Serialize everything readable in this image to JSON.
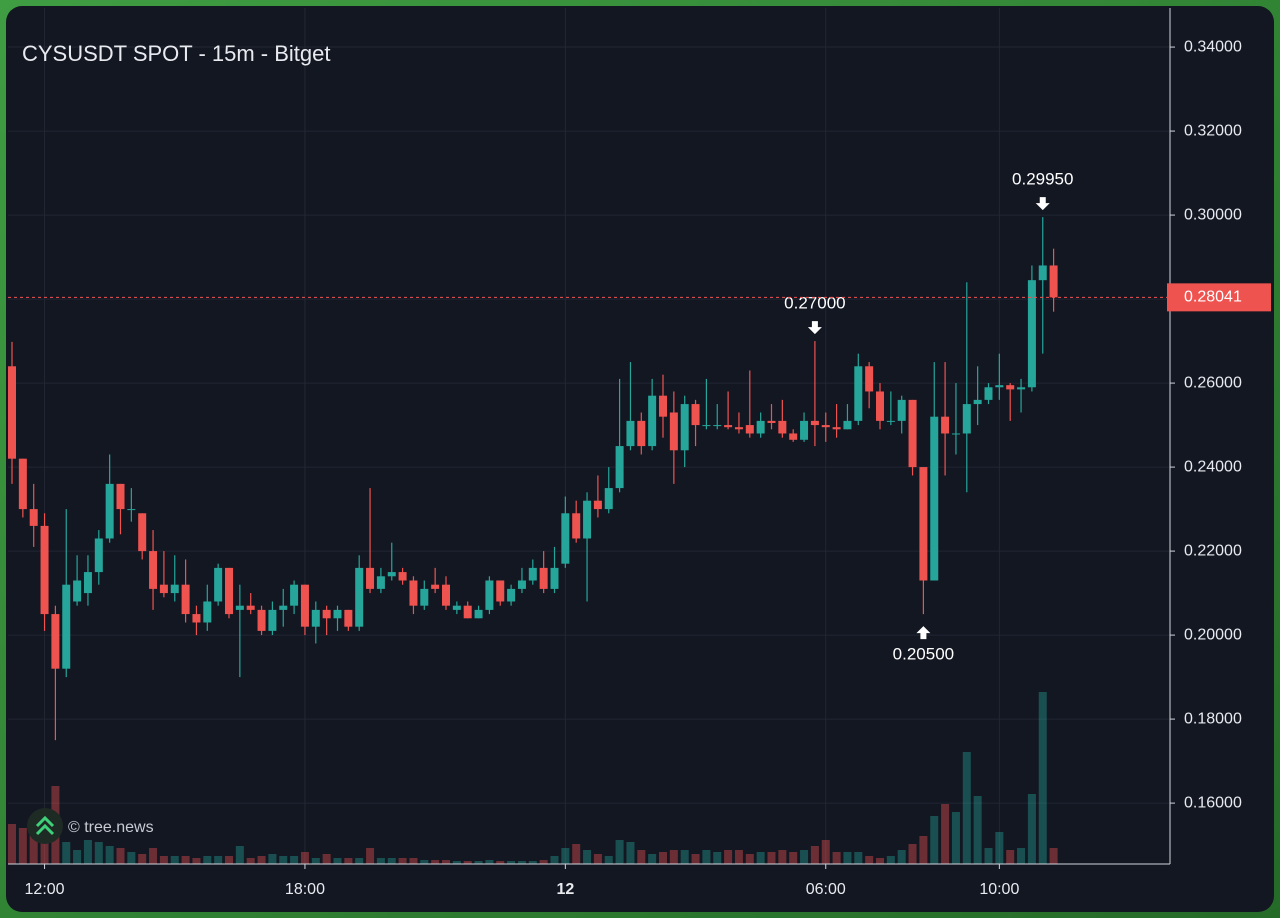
{
  "chart_data": {
    "type": "candlestick",
    "title": "CYSUSDT SPOT - 15m - Bitget",
    "watermark": "© tree.news",
    "categories": [
      null,
      null,
      null,
      "12:00",
      null,
      null,
      null,
      null,
      null,
      null,
      null,
      null,
      null,
      null,
      null,
      null,
      null,
      null,
      null,
      null,
      null,
      null,
      null,
      null,
      null,
      null,
      null,
      "18:00",
      null,
      null,
      null,
      null,
      null,
      null,
      null,
      null,
      null,
      null,
      null,
      null,
      null,
      null,
      null,
      null,
      null,
      null,
      null,
      null,
      null,
      null,
      null,
      "12",
      null,
      null,
      null,
      null,
      null,
      null,
      null,
      null,
      null,
      null,
      null,
      null,
      null,
      null,
      null,
      null,
      null,
      null,
      null,
      null,
      null,
      null,
      null,
      "06:00",
      null,
      null,
      null,
      null,
      null,
      null,
      null,
      null,
      null,
      null,
      null,
      null,
      null,
      null,
      null,
      "10:00",
      null,
      null,
      null,
      null,
      null
    ],
    "open": [
      0.264,
      0.242,
      0.23,
      0.226,
      0.205,
      0.192,
      0.208,
      0.21,
      0.215,
      0.223,
      0.236,
      0.23,
      0.229,
      0.22,
      0.212,
      0.21,
      0.212,
      0.205,
      0.203,
      0.208,
      0.216,
      0.206,
      0.207,
      0.206,
      0.201,
      0.206,
      0.207,
      0.212,
      0.202,
      0.206,
      0.204,
      0.206,
      0.202,
      0.216,
      0.211,
      0.214,
      0.215,
      0.213,
      0.207,
      0.212,
      0.212,
      0.206,
      0.207,
      0.204,
      0.206,
      0.213,
      0.208,
      0.211,
      0.213,
      0.216,
      0.211,
      0.217,
      0.229,
      0.223,
      0.232,
      0.23,
      0.235,
      0.245,
      0.251,
      0.245,
      0.257,
      0.253,
      0.244,
      0.255,
      0.25,
      0.25,
      0.25,
      0.2495,
      0.25,
      0.248,
      0.251,
      0.251,
      0.248,
      0.2465,
      0.251,
      0.25,
      0.2495,
      0.249,
      0.251,
      0.264,
      0.258,
      0.251,
      0.251,
      0.256,
      0.24,
      0.213,
      0.252,
      0.248,
      0.248,
      0.255,
      0.256,
      0.259,
      0.2595,
      0.2585,
      0.259,
      0.2845,
      0.288
    ],
    "high": [
      0.2698,
      0.242,
      0.236,
      0.229,
      0.207,
      0.23,
      0.219,
      0.219,
      0.225,
      0.243,
      0.236,
      0.235,
      0.229,
      0.225,
      0.22,
      0.219,
      0.218,
      0.207,
      0.212,
      0.217,
      0.216,
      0.212,
      0.21,
      0.207,
      0.208,
      0.211,
      0.213,
      0.212,
      0.208,
      0.207,
      0.207,
      0.206,
      0.219,
      0.235,
      0.216,
      0.222,
      0.216,
      0.214,
      0.213,
      0.216,
      0.214,
      0.208,
      0.208,
      0.207,
      0.214,
      0.213,
      0.212,
      0.216,
      0.218,
      0.22,
      0.221,
      0.233,
      0.232,
      0.234,
      0.238,
      0.24,
      0.261,
      0.265,
      0.253,
      0.261,
      0.262,
      0.258,
      0.257,
      0.256,
      0.261,
      0.255,
      0.258,
      0.253,
      0.263,
      0.253,
      0.255,
      0.256,
      0.249,
      0.253,
      0.27,
      0.253,
      0.255,
      0.255,
      0.267,
      0.265,
      0.26,
      0.258,
      0.257,
      0.256,
      0.24,
      0.265,
      0.265,
      0.26,
      0.284,
      0.264,
      0.26,
      0.267,
      0.26,
      0.261,
      0.288,
      0.2995,
      0.292
    ],
    "low": [
      0.236,
      0.228,
      0.221,
      0.201,
      0.175,
      0.19,
      0.207,
      0.207,
      0.212,
      0.222,
      0.224,
      0.227,
      0.218,
      0.206,
      0.209,
      0.208,
      0.203,
      0.2,
      0.201,
      0.207,
      0.204,
      0.19,
      0.205,
      0.2,
      0.2,
      0.202,
      0.205,
      0.2,
      0.198,
      0.2,
      0.201,
      0.201,
      0.201,
      0.21,
      0.21,
      0.213,
      0.212,
      0.205,
      0.206,
      0.21,
      0.206,
      0.205,
      0.204,
      0.204,
      0.205,
      0.207,
      0.207,
      0.21,
      0.212,
      0.21,
      0.21,
      0.216,
      0.222,
      0.208,
      0.228,
      0.229,
      0.234,
      0.244,
      0.243,
      0.244,
      0.247,
      0.236,
      0.24,
      0.245,
      0.249,
      0.249,
      0.249,
      0.248,
      0.247,
      0.247,
      0.249,
      0.247,
      0.246,
      0.246,
      0.245,
      0.246,
      0.247,
      0.249,
      0.25,
      0.254,
      0.249,
      0.25,
      0.248,
      0.238,
      0.205,
      0.213,
      0.238,
      0.243,
      0.234,
      0.25,
      0.255,
      0.256,
      0.251,
      0.253,
      0.258,
      0.267,
      0.277
    ],
    "close": [
      0.242,
      0.23,
      0.226,
      0.205,
      0.192,
      0.212,
      0.213,
      0.215,
      0.223,
      0.236,
      0.23,
      0.23,
      0.22,
      0.211,
      0.21,
      0.212,
      0.205,
      0.203,
      0.208,
      0.216,
      0.205,
      0.207,
      0.206,
      0.201,
      0.206,
      0.207,
      0.212,
      0.202,
      0.206,
      0.204,
      0.206,
      0.202,
      0.216,
      0.211,
      0.214,
      0.215,
      0.213,
      0.207,
      0.211,
      0.211,
      0.207,
      0.207,
      0.204,
      0.206,
      0.213,
      0.208,
      0.211,
      0.213,
      0.216,
      0.211,
      0.216,
      0.229,
      0.223,
      0.232,
      0.23,
      0.235,
      0.245,
      0.251,
      0.245,
      0.257,
      0.252,
      0.244,
      0.255,
      0.25,
      0.25,
      0.25,
      0.2495,
      0.249,
      0.248,
      0.251,
      0.2505,
      0.248,
      0.2465,
      0.251,
      0.25,
      0.2495,
      0.249,
      0.251,
      0.264,
      0.258,
      0.251,
      0.251,
      0.256,
      0.24,
      0.213,
      0.252,
      0.248,
      0.248,
      0.255,
      0.256,
      0.259,
      0.2595,
      0.2585,
      0.259,
      0.2845,
      0.288,
      0.28041
    ],
    "volume": [
      40,
      36,
      30,
      28,
      78,
      22,
      14,
      24,
      22,
      18,
      16,
      12,
      10,
      16,
      8,
      8,
      8,
      6,
      8,
      8,
      8,
      18,
      6,
      8,
      10,
      8,
      8,
      12,
      6,
      10,
      6,
      6,
      6,
      16,
      6,
      6,
      6,
      6,
      4,
      4,
      4,
      3,
      3,
      3,
      4,
      3,
      3,
      3,
      3,
      4,
      8,
      16,
      20,
      14,
      10,
      8,
      24,
      22,
      14,
      10,
      12,
      14,
      14,
      10,
      14,
      12,
      14,
      14,
      10,
      12,
      12,
      14,
      12,
      14,
      18,
      24,
      12,
      12,
      12,
      8,
      6,
      8,
      14,
      20,
      28,
      48,
      60,
      52,
      112,
      68,
      16,
      32,
      14,
      16,
      70,
      172,
      16
    ],
    "up_color": "#26a69a",
    "down_color": "#ef5350",
    "ylim": [
      0.1455,
      0.3493
    ],
    "yticks": [
      {
        "value": 0.16,
        "label": "0.16000"
      },
      {
        "value": 0.18,
        "label": "0.18000"
      },
      {
        "value": 0.2,
        "label": "0.20000"
      },
      {
        "value": 0.22,
        "label": "0.22000"
      },
      {
        "value": 0.24,
        "label": "0.24000"
      },
      {
        "value": 0.26,
        "label": "0.26000"
      },
      {
        "value": 0.28,
        "label": "0.28000"
      },
      {
        "value": 0.3,
        "label": "0.30000"
      },
      {
        "value": 0.32,
        "label": "0.32000"
      },
      {
        "value": 0.34,
        "label": "0.34000"
      }
    ],
    "annotations": [
      {
        "value": 0.27,
        "label": "0.27000"
      },
      {
        "value": 0.2995,
        "label": "0.29950"
      },
      {
        "value": 0.205,
        "label": "0.20500"
      }
    ],
    "grid": true
  }
}
